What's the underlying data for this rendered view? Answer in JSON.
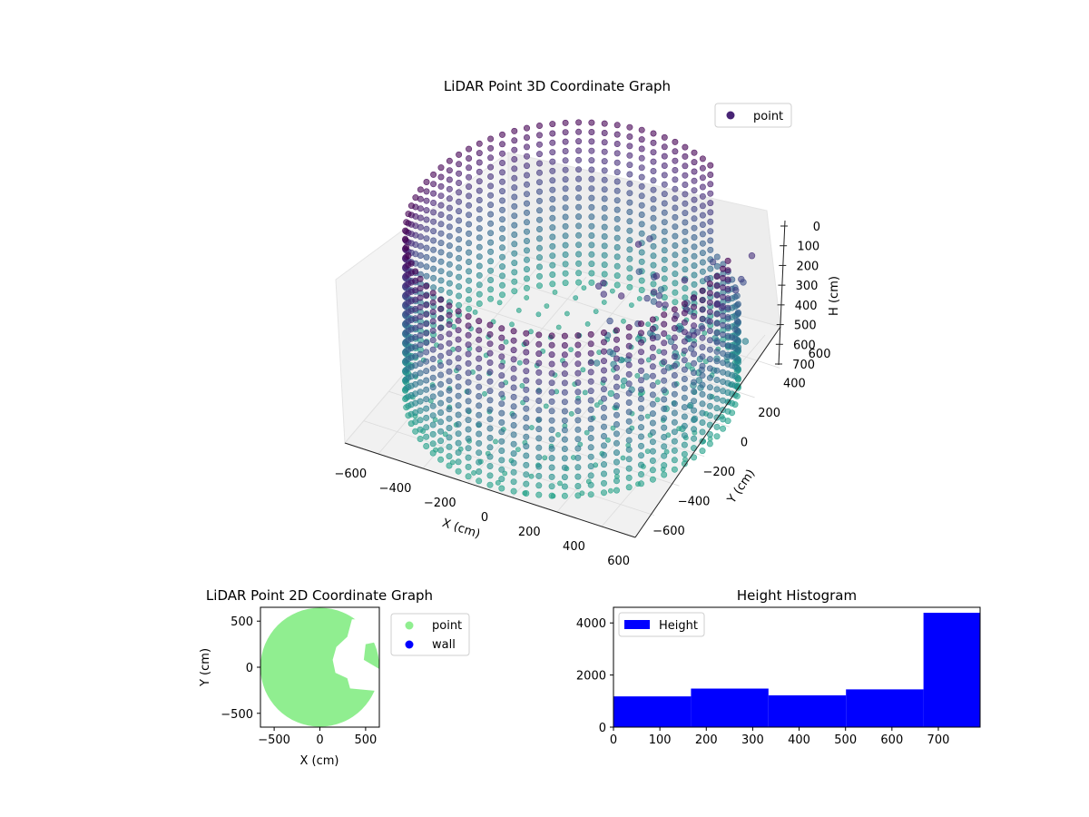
{
  "chart_data": [
    {
      "type": "scatter",
      "projection": "3d",
      "title": "LiDAR Point 3D Coordinate Graph",
      "xlabel": "X (cm)",
      "ylabel": "Y (cm)",
      "zlabel": "H (cm)",
      "xlim": [
        -650,
        650
      ],
      "ylim": [
        -650,
        650
      ],
      "zlim": [
        790,
        0
      ],
      "xticks": [
        "−600",
        "−400",
        "−200",
        "0",
        "200",
        "400",
        "600"
      ],
      "yticks": [
        "−600",
        "−400",
        "−200",
        "0",
        "200",
        "400",
        "600"
      ],
      "zticks": [
        "0",
        "100",
        "200",
        "300",
        "400",
        "500",
        "600",
        "700"
      ],
      "z_inverted": true,
      "colormap": "viridis",
      "legend": {
        "entries": [
          {
            "label": "point",
            "color": "#482475"
          }
        ],
        "placement": "top-right"
      },
      "shape": "cylindrical wall of points, radius ~650 cm, height 0–790 cm, open to the +X/+Y side, with a denser cluster near the opening",
      "wall_radius": 650,
      "height_range": [
        0,
        790
      ]
    },
    {
      "type": "scatter",
      "title": "LiDAR Point 2D Coordinate Graph",
      "xlabel": "X (cm)",
      "ylabel": "Y (cm)",
      "xlim": [
        -650,
        650
      ],
      "ylim": [
        -650,
        650
      ],
      "xticks": [
        "−500",
        "0",
        "500"
      ],
      "yticks": [
        "−500",
        "0",
        "500"
      ],
      "legend": {
        "entries": [
          {
            "label": "point",
            "color": "#90ee90"
          },
          {
            "label": "wall",
            "color": "#0000ff"
          }
        ],
        "placement": "outside right"
      },
      "disk_radius": 650,
      "notch_outline": [
        [
          350,
          520
        ],
        [
          300,
          330
        ],
        [
          180,
          220
        ],
        [
          140,
          80
        ],
        [
          170,
          -60
        ],
        [
          300,
          -120
        ],
        [
          330,
          -230
        ],
        [
          650,
          -260
        ],
        [
          650,
          -20
        ],
        [
          480,
          80
        ],
        [
          500,
          250
        ],
        [
          650,
          280
        ],
        [
          650,
          520
        ]
      ]
    },
    {
      "type": "bar",
      "title": "Height Histogram",
      "xlabel": "",
      "ylabel": "",
      "bin_edges": [
        0,
        167,
        334,
        501,
        668,
        790
      ],
      "counts": [
        1180,
        1480,
        1220,
        1450,
        4390
      ],
      "xlim": [
        0,
        790
      ],
      "ylim": [
        0,
        4600
      ],
      "xticks": [
        0,
        100,
        200,
        300,
        400,
        500,
        600,
        700
      ],
      "yticks": [
        0,
        2000,
        4000
      ],
      "color": "#0000ff",
      "legend": {
        "entries": [
          {
            "label": "Height",
            "color": "#0000ff"
          }
        ],
        "placement": "upper-left"
      }
    }
  ]
}
